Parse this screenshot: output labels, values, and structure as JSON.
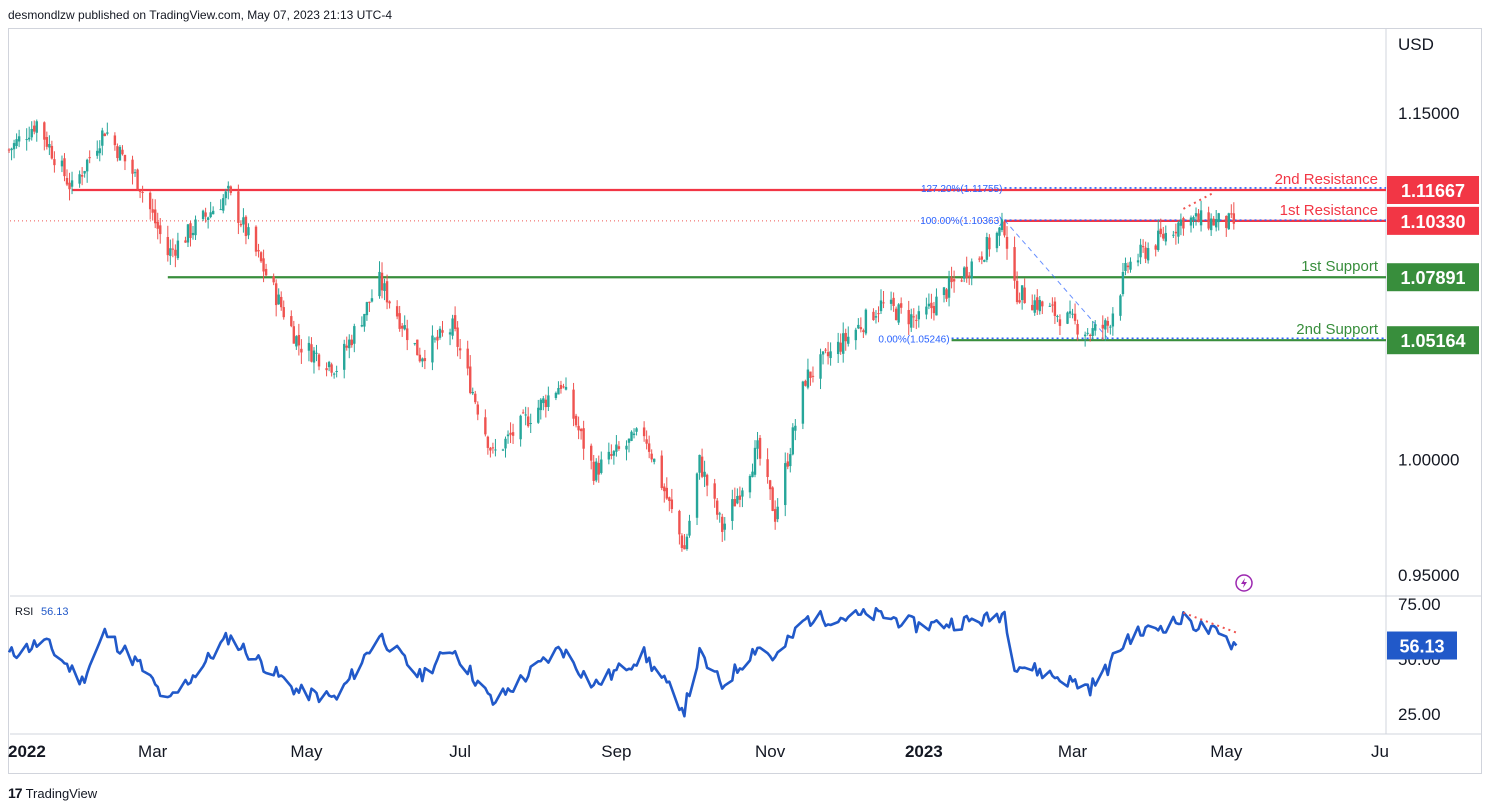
{
  "header": {
    "published": "desmondlzw published on TradingView.com, May 07, 2023 21:13 UTC-4"
  },
  "footer": {
    "logo": "17",
    "brand": "TradingView"
  },
  "colors": {
    "up": "#26a69a",
    "down": "#ef5350",
    "resistance": "#f23645",
    "support": "#388e3c",
    "fib": "#2962ff",
    "rsi": "#2159c9",
    "grid": "#f0f3fa"
  },
  "chart_data": [
    {
      "type": "candlestick",
      "title": "",
      "ylabel": "USD",
      "ylim": [
        0.94,
        1.19
      ],
      "y_ticks": [
        "1.15000",
        "1.00000",
        "0.95000"
      ],
      "y_tick_values": [
        1.15,
        1.0,
        0.95
      ],
      "x_ticks": [
        "2022",
        "Mar",
        "May",
        "Jul",
        "Sep",
        "Nov",
        "2023",
        "Mar",
        "May",
        "Ju"
      ],
      "path": [
        [
          "2022-01-03",
          1.134
        ],
        [
          "2022-01-14",
          1.146
        ],
        [
          "2022-01-28",
          1.117
        ],
        [
          "2022-02-10",
          1.143
        ],
        [
          "2022-02-24",
          1.119
        ],
        [
          "2022-03-07",
          1.089
        ],
        [
          "2022-03-31",
          1.115
        ],
        [
          "2022-04-28",
          1.05
        ],
        [
          "2022-05-13",
          1.04
        ],
        [
          "2022-05-30",
          1.077
        ],
        [
          "2022-06-15",
          1.045
        ],
        [
          "2022-06-28",
          1.057
        ],
        [
          "2022-07-14",
          1.002
        ],
        [
          "2022-08-10",
          1.033
        ],
        [
          "2022-08-23",
          0.995
        ],
        [
          "2022-09-12",
          1.012
        ],
        [
          "2022-09-28",
          0.961
        ],
        [
          "2022-10-04",
          0.999
        ],
        [
          "2022-10-13",
          0.97
        ],
        [
          "2022-10-27",
          1.004
        ],
        [
          "2022-11-03",
          0.976
        ],
        [
          "2022-11-15",
          1.035
        ],
        [
          "2022-12-15",
          1.067
        ],
        [
          "2022-12-30",
          1.06
        ],
        [
          "2023-01-26",
          1.092
        ],
        [
          "2023-02-02",
          1.101
        ],
        [
          "2023-02-06",
          1.073
        ],
        [
          "2023-03-08",
          1.055
        ],
        [
          "2023-03-15",
          1.058
        ],
        [
          "2023-03-23",
          1.084
        ],
        [
          "2023-04-14",
          1.104
        ],
        [
          "2023-04-26",
          1.103
        ],
        [
          "2023-05-05",
          1.102
        ]
      ],
      "levels": [
        {
          "label": "2nd Resistance",
          "value": "1.11667",
          "price": 1.11667,
          "color": "#f23645"
        },
        {
          "label": "1st Resistance",
          "value": "1.10330",
          "price": 1.1033,
          "color": "#f23645"
        },
        {
          "label": "1st Support",
          "value": "1.07891",
          "price": 1.07891,
          "color": "#388e3c"
        },
        {
          "label": "2nd Support",
          "value": "1.05164",
          "price": 1.05164,
          "color": "#388e3c"
        }
      ],
      "fib_levels": [
        {
          "label": "127.20%(1.11755)",
          "price": 1.11755
        },
        {
          "label": "100.00%(1.10363)",
          "price": 1.10363
        },
        {
          "label": "0.00%(1.05246)",
          "price": 1.05246
        }
      ],
      "current_price": 1.1033
    },
    {
      "type": "line",
      "title": "RSI",
      "current_value": "56.13",
      "ylim": [
        20,
        80
      ],
      "y_ticks": [
        "75.00",
        "50.00",
        "25.00"
      ],
      "y_tick_values": [
        75,
        50,
        25
      ],
      "series": [
        {
          "name": "RSI",
          "path": [
            [
              "2022-01-03",
              52
            ],
            [
              "2022-01-17",
              58
            ],
            [
              "2022-02-01",
              40
            ],
            [
              "2022-02-10",
              62
            ],
            [
              "2022-02-24",
              47
            ],
            [
              "2022-03-07",
              30
            ],
            [
              "2022-03-31",
              60
            ],
            [
              "2022-04-28",
              35
            ],
            [
              "2022-05-13",
              32
            ],
            [
              "2022-05-30",
              61
            ],
            [
              "2022-06-15",
              42
            ],
            [
              "2022-06-28",
              55
            ],
            [
              "2022-07-14",
              30
            ],
            [
              "2022-08-10",
              55
            ],
            [
              "2022-08-23",
              38
            ],
            [
              "2022-09-12",
              52
            ],
            [
              "2022-09-28",
              27
            ],
            [
              "2022-10-04",
              52
            ],
            [
              "2022-10-13",
              38
            ],
            [
              "2022-10-27",
              56
            ],
            [
              "2022-11-03",
              50
            ],
            [
              "2022-11-15",
              68
            ],
            [
              "2022-12-15",
              70
            ],
            [
              "2022-12-30",
              65
            ],
            [
              "2023-01-26",
              68
            ],
            [
              "2023-02-02",
              71
            ],
            [
              "2023-02-06",
              48
            ],
            [
              "2023-03-08",
              37
            ],
            [
              "2023-03-15",
              46
            ],
            [
              "2023-03-23",
              60
            ],
            [
              "2023-04-14",
              68
            ],
            [
              "2023-04-26",
              62
            ],
            [
              "2023-05-05",
              56.13
            ]
          ]
        }
      ]
    }
  ]
}
